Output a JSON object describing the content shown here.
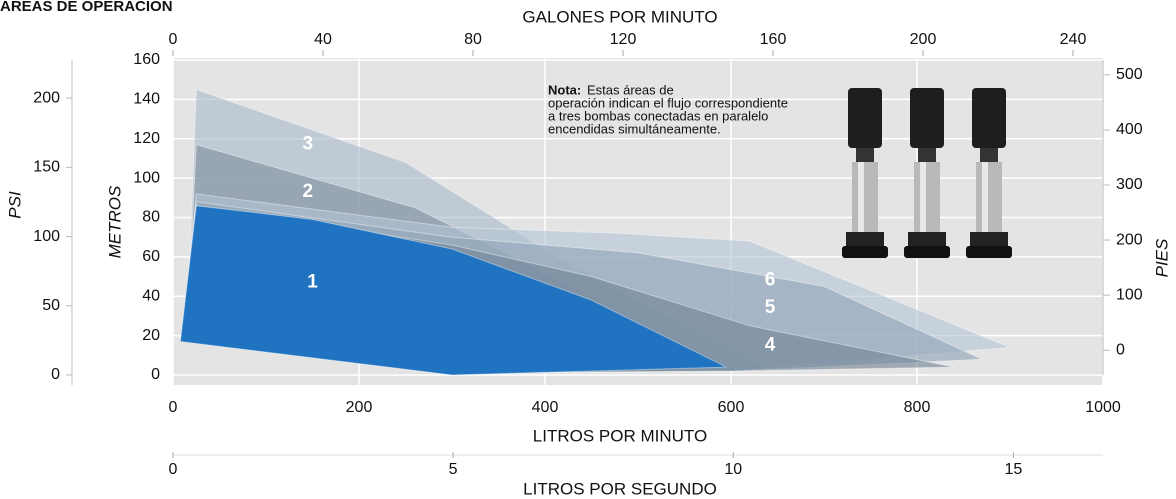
{
  "chart_data": {
    "type": "area",
    "title": "ÁREAS DE OPERACIÓN",
    "xlabel": "LITROS POR MINUTO",
    "ylabel": "METROS",
    "xlim": [
      0,
      1000
    ],
    "xticks": [
      0,
      200,
      400,
      600,
      800,
      1000
    ],
    "ylim": [
      0,
      160
    ],
    "yticks": [
      0,
      20,
      40,
      60,
      80,
      100,
      120,
      140,
      160
    ],
    "grid": true,
    "top_axis": {
      "label": "GALONES POR MINUTO",
      "xlim": [
        0,
        248
      ],
      "xticks": [
        0,
        40,
        80,
        120,
        160,
        200,
        240
      ]
    },
    "bottom_axis": {
      "label": "LITROS POR SEGUNDO",
      "xlim": [
        0,
        16.6
      ],
      "xticks": [
        0,
        5,
        10,
        15
      ]
    },
    "left_axis": {
      "label": "PSI",
      "ylim": [
        0,
        227.5
      ],
      "yticks": [
        0,
        50,
        100,
        150,
        200
      ]
    },
    "right_axis": {
      "label": "PIES",
      "ylim": [
        -45,
        527
      ],
      "yticks": [
        0,
        100,
        200,
        300,
        400,
        500
      ]
    },
    "note_label": "Nota:",
    "note": [
      "Estas áreas de",
      "operación indican el flujo correspondiente",
      "a tres bombas conectadas en paralelo",
      "encendidas simultáneamente."
    ],
    "series": [
      {
        "name": "3",
        "color": "#a9b9cb",
        "x": [
          15,
          25,
          250,
          420,
          640,
          300
        ],
        "values": [
          20,
          145,
          108,
          58,
          3,
          1
        ]
      },
      {
        "name": "2",
        "color": "#7d8c9c",
        "x": [
          15,
          25,
          260,
          460,
          610,
          300
        ],
        "values": [
          20,
          117,
          85,
          38,
          2,
          1
        ]
      },
      {
        "name": "6",
        "color": "#b4c4d6",
        "x": [
          10,
          25,
          300,
          480,
          620,
          900,
          600,
          300
        ],
        "values": [
          22,
          92,
          75,
          72,
          68,
          14,
          2,
          1
        ]
      },
      {
        "name": "5",
        "color": "#8ea1b5",
        "x": [
          10,
          25,
          300,
          500,
          700,
          870,
          600,
          300
        ],
        "values": [
          20,
          88,
          70,
          62,
          45,
          8,
          2,
          1
        ]
      },
      {
        "name": "4",
        "color": "#6f8295",
        "x": [
          10,
          25,
          300,
          450,
          620,
          840,
          600,
          300
        ],
        "values": [
          18,
          86,
          66,
          50,
          25,
          4,
          2,
          1
        ]
      },
      {
        "name": "1",
        "color": "#1f73c1",
        "x": [
          8,
          25,
          150,
          300,
          450,
          595,
          300
        ],
        "values": [
          17,
          86,
          79,
          64,
          38,
          4,
          0
        ]
      }
    ]
  }
}
